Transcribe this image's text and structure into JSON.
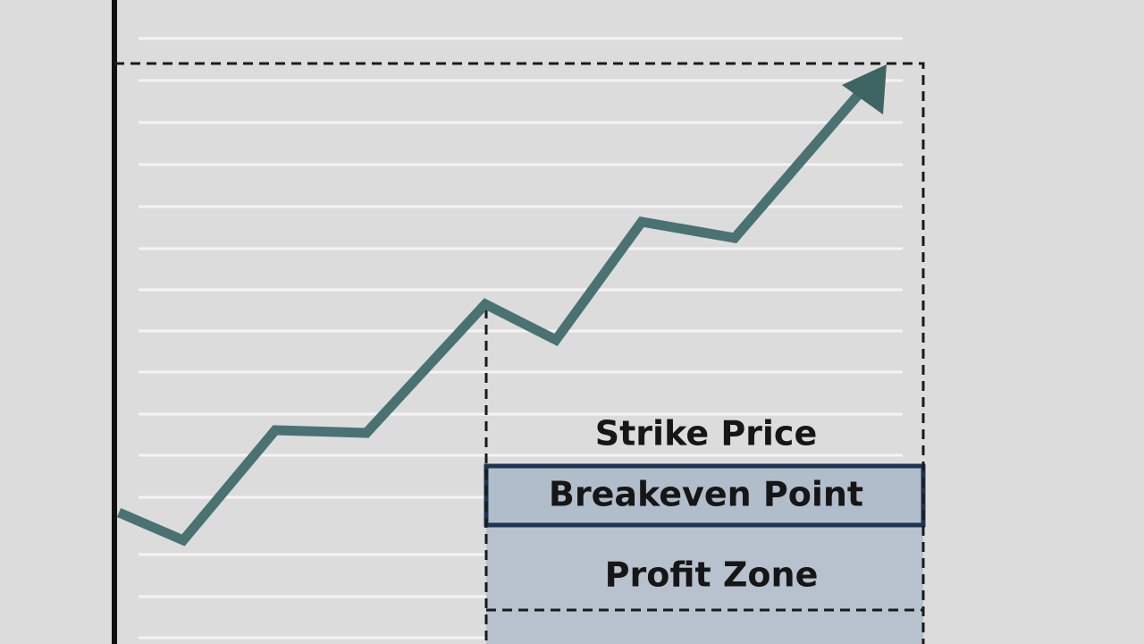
{
  "labels": {
    "strike_price": "Strike Price",
    "breakeven_point": "Breakeven Point",
    "profit_zone": "Profit Zone"
  }
}
